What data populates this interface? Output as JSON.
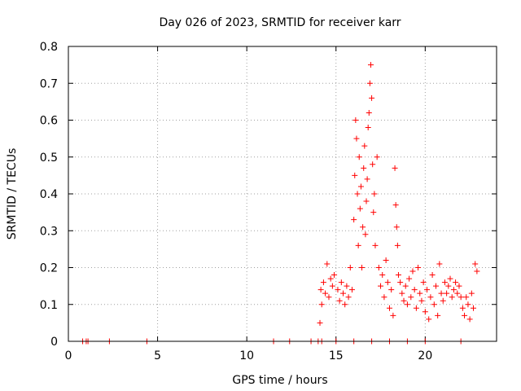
{
  "chart_data": {
    "type": "scatter",
    "title": "Day 026 of 2023, SRMTID for receiver karr",
    "xlabel": "GPS time / hours",
    "ylabel": "SRMTID / TECUs",
    "xlim": [
      0,
      24
    ],
    "ylim": [
      0,
      0.8
    ],
    "x_ticks": [
      0,
      5,
      10,
      15,
      20
    ],
    "x_tick_labels": [
      "0",
      "5",
      "10",
      "15",
      "20"
    ],
    "y_ticks": [
      0,
      0.1,
      0.2,
      0.3,
      0.4,
      0.5,
      0.6,
      0.7,
      0.8
    ],
    "y_tick_labels": [
      "0",
      "0.1",
      "0.2",
      "0.3",
      "0.4",
      "0.5",
      "0.6",
      "0.7",
      "0.8"
    ],
    "grid": true,
    "marker": "plus",
    "series_color": "#ff0000",
    "series": [
      {
        "name": "SRMTID",
        "x": [
          0.8,
          1.0,
          1.1,
          2.3,
          4.4,
          11.5,
          12.4,
          13.6,
          14.0,
          14.2,
          15.0,
          16.0,
          17.0,
          18.0,
          19.0,
          20.0,
          22.0,
          14.1,
          14.15,
          14.2,
          14.3,
          14.4,
          14.5,
          14.6,
          14.7,
          14.8,
          14.9,
          15.1,
          15.2,
          15.3,
          15.4,
          15.5,
          15.6,
          15.7,
          15.8,
          15.9,
          16.0,
          16.05,
          16.1,
          16.15,
          16.2,
          16.25,
          16.3,
          16.35,
          16.4,
          16.45,
          16.5,
          16.55,
          16.6,
          16.65,
          16.7,
          16.75,
          16.8,
          16.85,
          16.9,
          16.95,
          17.0,
          17.05,
          17.1,
          17.15,
          17.2,
          17.3,
          17.4,
          17.5,
          17.6,
          17.7,
          17.8,
          17.9,
          18.0,
          18.1,
          18.2,
          18.3,
          18.35,
          18.4,
          18.45,
          18.5,
          18.6,
          18.7,
          18.8,
          18.9,
          19.0,
          19.1,
          19.2,
          19.3,
          19.4,
          19.5,
          19.6,
          19.7,
          19.8,
          19.9,
          20.0,
          20.1,
          20.2,
          20.3,
          20.4,
          20.5,
          20.6,
          20.7,
          20.8,
          20.9,
          21.0,
          21.1,
          21.2,
          21.3,
          21.4,
          21.5,
          21.6,
          21.7,
          21.8,
          21.9,
          22.0,
          22.1,
          22.2,
          22.3,
          22.4,
          22.5,
          22.6,
          22.7,
          22.8,
          22.9
        ],
        "y": [
          0,
          0,
          0,
          0,
          0,
          0,
          0,
          0,
          0,
          0,
          0,
          0,
          0,
          0,
          0,
          0,
          0,
          0.05,
          0.14,
          0.1,
          0.16,
          0.13,
          0.21,
          0.12,
          0.17,
          0.15,
          0.18,
          0.14,
          0.11,
          0.16,
          0.13,
          0.1,
          0.15,
          0.12,
          0.2,
          0.14,
          0.33,
          0.45,
          0.6,
          0.55,
          0.4,
          0.26,
          0.5,
          0.36,
          0.42,
          0.2,
          0.31,
          0.47,
          0.53,
          0.29,
          0.38,
          0.44,
          0.58,
          0.62,
          0.7,
          0.75,
          0.66,
          0.48,
          0.35,
          0.4,
          0.26,
          0.5,
          0.2,
          0.15,
          0.18,
          0.12,
          0.22,
          0.16,
          0.09,
          0.14,
          0.07,
          0.47,
          0.37,
          0.31,
          0.26,
          0.18,
          0.16,
          0.13,
          0.11,
          0.15,
          0.1,
          0.17,
          0.12,
          0.19,
          0.14,
          0.09,
          0.2,
          0.13,
          0.11,
          0.16,
          0.08,
          0.14,
          0.06,
          0.12,
          0.18,
          0.1,
          0.15,
          0.07,
          0.21,
          0.13,
          0.11,
          0.16,
          0.13,
          0.15,
          0.17,
          0.12,
          0.14,
          0.16,
          0.13,
          0.15,
          0.12,
          0.09,
          0.07,
          0.12,
          0.1,
          0.06,
          0.13,
          0.09,
          0.21,
          0.19
        ]
      }
    ]
  }
}
